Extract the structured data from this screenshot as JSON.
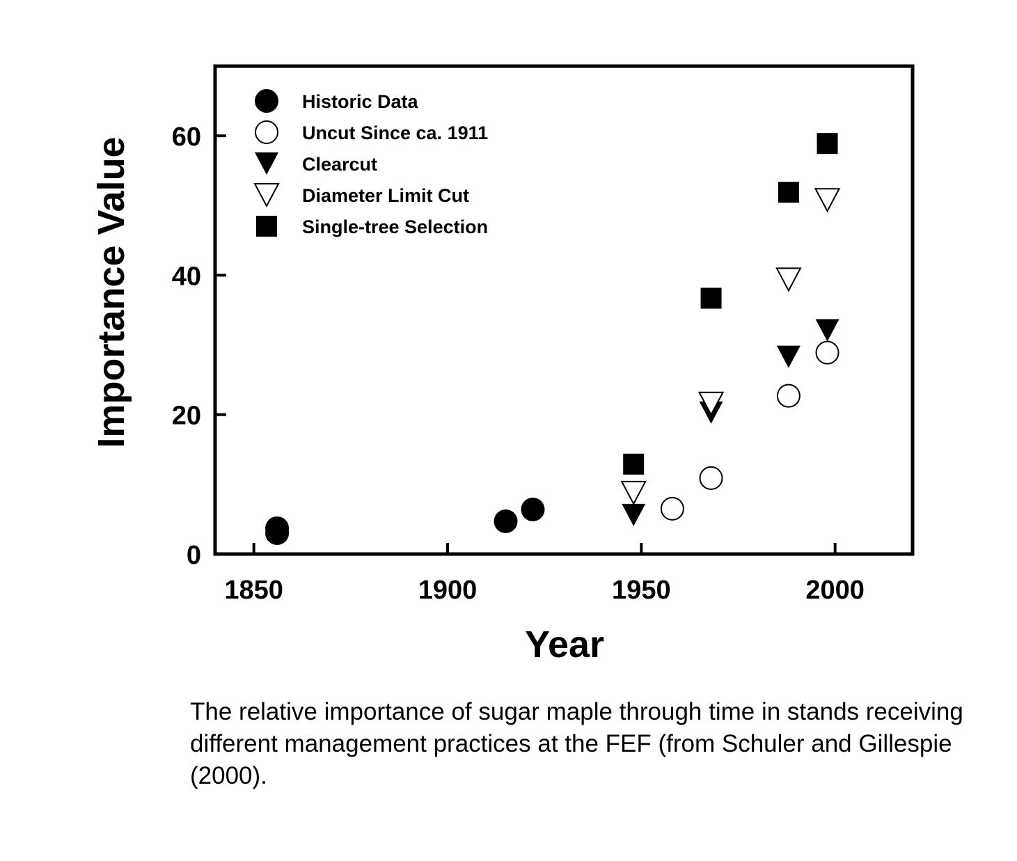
{
  "chart_data": {
    "type": "scatter",
    "xlabel": "Year",
    "ylabel": "Importance Value",
    "xlim": [
      1840,
      2020
    ],
    "ylim": [
      0,
      70
    ],
    "x_ticks": [
      1850,
      1900,
      1950,
      2000
    ],
    "y_ticks": [
      0,
      20,
      40,
      60
    ],
    "grid": false,
    "legend_position": "top-left",
    "series": [
      {
        "name": "Historic Data",
        "marker": "filled-circle",
        "points": [
          {
            "x": 1856,
            "y": 3.0
          },
          {
            "x": 1856,
            "y": 3.7
          },
          {
            "x": 1915,
            "y": 4.7
          },
          {
            "x": 1922,
            "y": 6.4
          }
        ]
      },
      {
        "name": "Uncut Since ca. 1911",
        "marker": "open-circle",
        "points": [
          {
            "x": 1958,
            "y": 6.5
          },
          {
            "x": 1968,
            "y": 10.9
          },
          {
            "x": 1988,
            "y": 22.7
          },
          {
            "x": 1998,
            "y": 28.9
          }
        ]
      },
      {
        "name": "Clearcut",
        "marker": "filled-triangle-down",
        "points": [
          {
            "x": 1948,
            "y": 5.6
          },
          {
            "x": 1968,
            "y": 20.3
          },
          {
            "x": 1988,
            "y": 28.3
          },
          {
            "x": 1998,
            "y": 32.1
          }
        ]
      },
      {
        "name": "Diameter Limit Cut",
        "marker": "open-triangle-down",
        "points": [
          {
            "x": 1948,
            "y": 8.8
          },
          {
            "x": 1968,
            "y": 21.6
          },
          {
            "x": 1988,
            "y": 39.4
          },
          {
            "x": 1998,
            "y": 50.8
          }
        ]
      },
      {
        "name": "Single-tree Selection",
        "marker": "filled-square",
        "points": [
          {
            "x": 1948,
            "y": 12.9
          },
          {
            "x": 1968,
            "y": 36.7
          },
          {
            "x": 1988,
            "y": 51.9
          },
          {
            "x": 1998,
            "y": 58.9
          }
        ]
      }
    ]
  },
  "caption": "The relative importance of sugar maple through time in stands receiving different management practices at the FEF (from Schuler and Gillespie (2000)."
}
